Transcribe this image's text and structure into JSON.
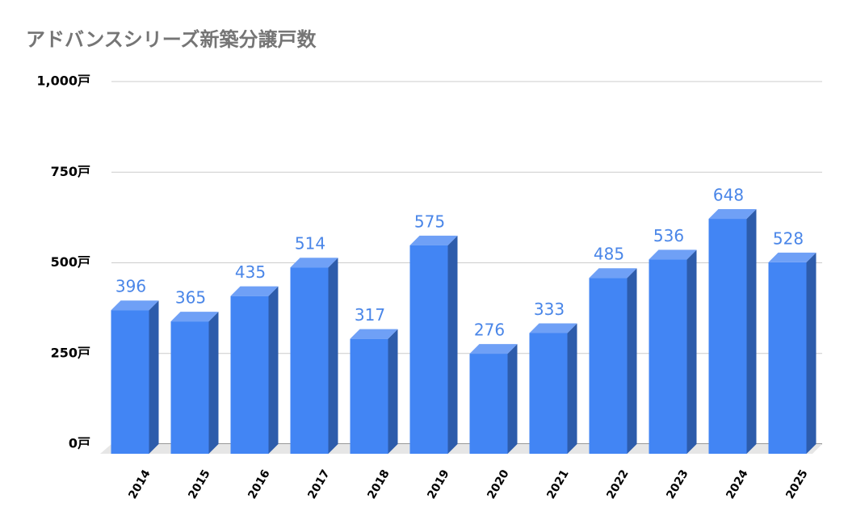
{
  "chart_data": {
    "type": "bar",
    "title": "アドバンスシリーズ新築分譲戸数",
    "categories": [
      "2014",
      "2015",
      "2016",
      "2017",
      "2018",
      "2019",
      "2020",
      "2021",
      "2022",
      "2023",
      "2024",
      "2025"
    ],
    "values": [
      396,
      365,
      435,
      514,
      317,
      575,
      276,
      333,
      485,
      536,
      648,
      528
    ],
    "color": "#4285f4",
    "ylim": [
      0,
      1000
    ],
    "yticks": [
      {
        "value": 0,
        "label": "0戸"
      },
      {
        "value": 250,
        "label": "250戸"
      },
      {
        "value": 500,
        "label": "500戸"
      },
      {
        "value": 750,
        "label": "750戸"
      },
      {
        "value": 1000,
        "label": "1,000戸"
      }
    ],
    "grid": true
  }
}
